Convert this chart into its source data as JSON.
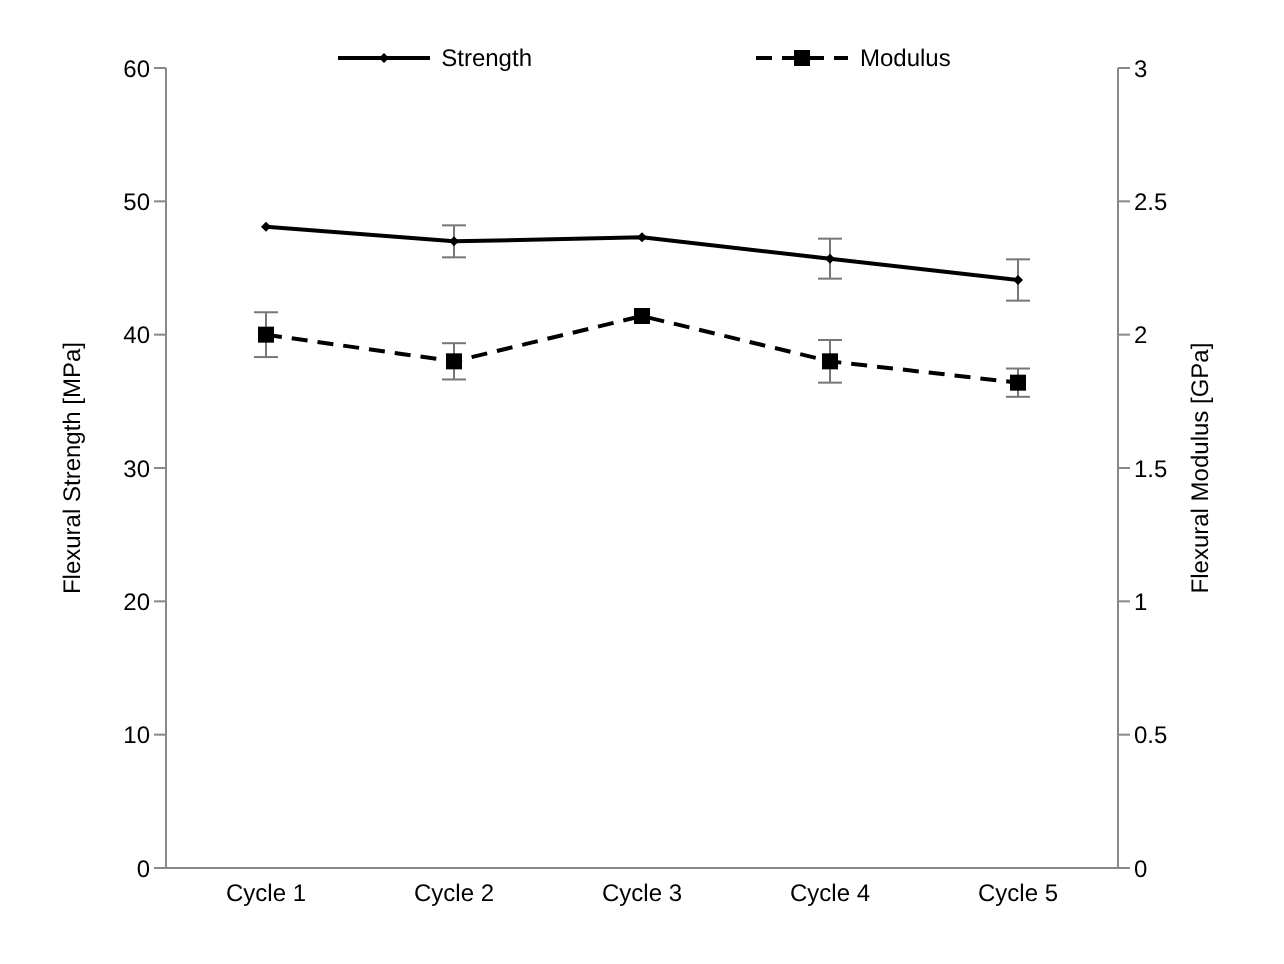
{
  "chart_data": {
    "type": "line",
    "categories": [
      "Cycle 1",
      "Cycle 2",
      "Cycle 3",
      "Cycle 4",
      "Cycle 5"
    ],
    "ylabel": "Flexural Strength [MPa]",
    "y2label": "Flexural Modulus [GPa]",
    "ylim": [
      0,
      60
    ],
    "yticks": [
      0,
      10,
      20,
      30,
      40,
      50,
      60
    ],
    "y2lim": [
      0,
      3
    ],
    "y2ticks": [
      0,
      0.5,
      1,
      1.5,
      2,
      2.5,
      3
    ],
    "legend": "top",
    "grid": false,
    "series": [
      {
        "name": "Strength",
        "color": "#000000",
        "values": [
          48.1,
          47.0,
          47.3,
          45.7,
          44.1
        ],
        "errors": [
          null,
          1.2,
          null,
          1.5,
          1.55
        ],
        "marker": "diamond",
        "line_style": "solid"
      },
      {
        "name": "Modulus",
        "color": "#000000",
        "axis": "y2",
        "values": [
          2.0,
          1.9,
          2.07,
          1.9,
          1.82
        ],
        "errors": [
          0.084,
          0.068,
          null,
          0.08,
          0.053
        ],
        "marker": "square",
        "line_style": "dashed"
      }
    ]
  }
}
